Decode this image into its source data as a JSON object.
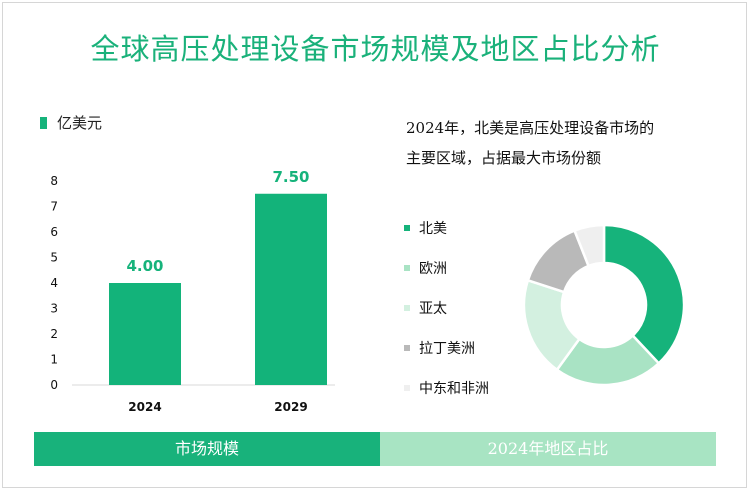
{
  "title": "全球高压处理设备市场规模及地区占比分析",
  "colors": {
    "accent": "#16b37b",
    "bar": "#13b37a",
    "footer_left": "#18b27b",
    "footer_right": "#a8e4c3"
  },
  "chart_data": [
    {
      "type": "bar",
      "unit_label": "亿美元",
      "categories": [
        "2024",
        "2029"
      ],
      "values": [
        4.0,
        7.5
      ],
      "data_labels": [
        "4.00",
        "7.50"
      ],
      "ylim": [
        0,
        8
      ],
      "yticks": [
        "0",
        "1",
        "2",
        "3",
        "4",
        "5",
        "6",
        "7",
        "8"
      ],
      "grid": false
    },
    {
      "type": "pie",
      "donut": true,
      "title": "2024年，北美是高压处理设备市场的主要区域，占据最大市场份额",
      "title_lines": [
        "2024年，北美是高压处理设备市场的",
        "主要区域，占据最大市场份额"
      ],
      "labels": [
        "北美",
        "欧洲",
        "亚太",
        "拉丁美洲",
        "中东和非洲"
      ],
      "values": [
        38,
        22,
        20,
        14,
        6
      ],
      "colors": [
        "#16b37b",
        "#a9e3c4",
        "#d3f0e0",
        "#b9b9b9",
        "#efefef"
      ],
      "legend_position": "left"
    }
  ],
  "footer": {
    "left_label": "市场规模",
    "right_label": "2024年地区占比"
  }
}
